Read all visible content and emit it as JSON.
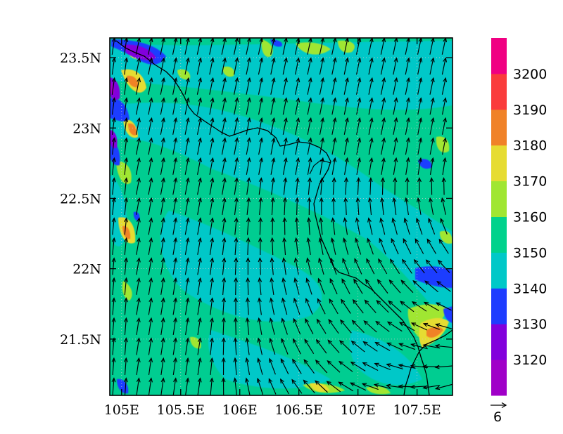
{
  "map": {
    "x_ticks": [
      {
        "value": 105.0,
        "label": "105E"
      },
      {
        "value": 105.5,
        "label": "105.5E"
      },
      {
        "value": 106.0,
        "label": "106E"
      },
      {
        "value": 106.5,
        "label": "106.5E"
      },
      {
        "value": 107.0,
        "label": "107E"
      },
      {
        "value": 107.5,
        "label": "107.5E"
      }
    ],
    "y_ticks": [
      {
        "value": 23.5,
        "label": "23.5N"
      },
      {
        "value": 23.0,
        "label": "23N"
      },
      {
        "value": 22.5,
        "label": "22.5N"
      },
      {
        "value": 22.0,
        "label": "22N"
      },
      {
        "value": 21.5,
        "label": "21.5N"
      }
    ],
    "lon_range": [
      104.9,
      107.8
    ],
    "lat_range": [
      21.1,
      23.64
    ],
    "base_color": "#00cd91",
    "contour_levels": [
      3120,
      3130,
      3140,
      3150,
      3160,
      3170,
      3180,
      3190,
      3200
    ],
    "reference_vector": {
      "label": "6"
    }
  },
  "colorbar": {
    "colors": [
      "#a000c8",
      "#8200dc",
      "#1e3cff",
      "#00c8c8",
      "#00d28c",
      "#a0e632",
      "#e6dc32",
      "#f08228",
      "#fa3c3c",
      "#f00082"
    ],
    "labels": [
      "3120",
      "3130",
      "3140",
      "3150",
      "3160",
      "3170",
      "3180",
      "3190",
      "3200"
    ]
  },
  "chart_data": {
    "type": "heatmap",
    "subtype": "contour map with wind vectors",
    "x_tick_labels": [
      "105E",
      "105.5E",
      "106E",
      "106.5E",
      "107E",
      "107.5E"
    ],
    "y_tick_labels": [
      "23.5N",
      "23N",
      "22.5N",
      "22N",
      "21.5N"
    ],
    "xlim": [
      104.9,
      107.8
    ],
    "ylim": [
      21.1,
      23.64
    ],
    "colorbar_labels": [
      3120,
      3130,
      3140,
      3150,
      3160,
      3170,
      3180,
      3190,
      3200
    ],
    "dominant_value_range": [
      3140,
      3160
    ],
    "wind": "predominantly southerly, turning to southeasterly in the southeast of the domain"
  }
}
